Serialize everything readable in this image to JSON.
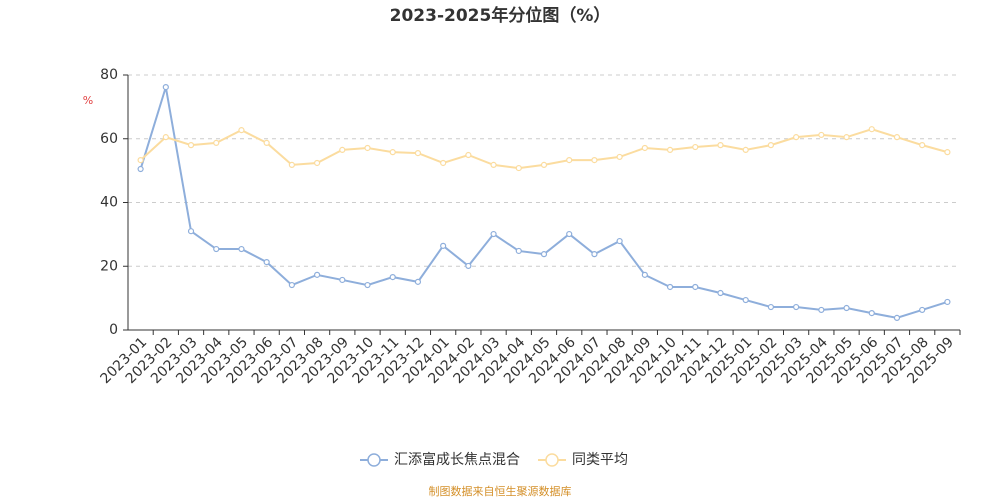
{
  "chart_data": {
    "type": "line",
    "title": "2023-2025年分位图（%）",
    "y_label": "%",
    "source": "制图数据来自恒生聚源数据库",
    "categories": [
      "2023-01",
      "2023-02",
      "2023-03",
      "2023-04",
      "2023-05",
      "2023-06",
      "2023-07",
      "2023-08",
      "2023-09",
      "2023-10",
      "2023-11",
      "2023-12",
      "2024-01",
      "2024-02",
      "2024-03",
      "2024-04",
      "2024-05",
      "2024-06",
      "2024-07",
      "2024-08",
      "2024-09",
      "2024-10",
      "2024-11",
      "2024-12",
      "2025-01",
      "2025-02",
      "2025-03",
      "2025-04",
      "2025-05",
      "2025-06",
      "2025-07",
      "2025-08",
      "2025-09"
    ],
    "series": [
      {
        "name": "汇添富成长焦点混合",
        "color": "#8eaedb",
        "values": [
          50.5,
          76.2,
          31,
          25.4,
          25.4,
          21.3,
          14.1,
          17.3,
          15.7,
          14.1,
          16.6,
          15.1,
          26.4,
          20.1,
          30.1,
          24.8,
          23.8,
          30.1,
          23.8,
          27.9,
          17.3,
          13.5,
          13.5,
          11.6,
          9.4,
          7.2,
          7.2,
          6.3,
          6.9,
          5.3,
          3.8,
          6.3,
          8.8
        ]
      },
      {
        "name": "同类平均",
        "color": "#fbdc9f",
        "values": [
          53.3,
          60.5,
          58,
          58.7,
          62.7,
          58.7,
          51.8,
          52.4,
          56.5,
          57.1,
          55.8,
          55.5,
          52.4,
          54.9,
          51.8,
          50.8,
          51.8,
          53.3,
          53.3,
          54.3,
          57.1,
          56.5,
          57.4,
          58,
          56.5,
          58,
          60.5,
          61.2,
          60.5,
          63,
          60.5,
          58,
          55.8
        ]
      }
    ],
    "ylim": [
      0,
      80
    ],
    "yticks": [
      0,
      20,
      40,
      60,
      80
    ],
    "grid": true
  }
}
